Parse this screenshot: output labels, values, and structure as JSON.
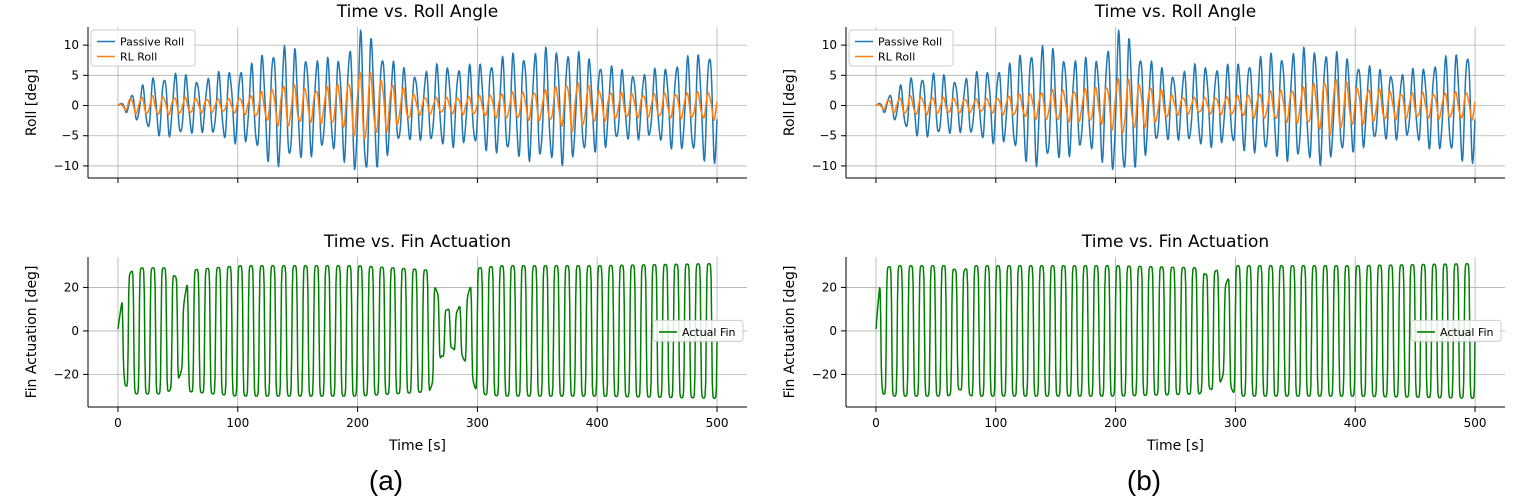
{
  "panels": [
    {
      "label": "(a)"
    },
    {
      "label": "(b)"
    }
  ],
  "colors": {
    "passive": "#1f77b4",
    "rl": "#ff7f0e",
    "fin": "#008000",
    "grid": "#b0b0b0"
  },
  "chart_data": [
    {
      "id": "a-roll",
      "type": "line",
      "title": "Time vs. Roll Angle",
      "xlabel": "",
      "ylabel": "Roll [deg]",
      "xlim": [
        -25,
        525
      ],
      "ylim": [
        -12,
        13
      ],
      "yticks": [
        -10,
        -5,
        0,
        5,
        10
      ],
      "xticks": [
        0,
        100,
        200,
        300,
        400,
        500
      ],
      "show_xtick_labels": false,
      "grid": true,
      "legend": "top-left",
      "series": [
        {
          "name": "Passive Roll",
          "color_key": "passive",
          "period": 9.1,
          "phase": 0,
          "env": {
            "x": [
              0,
              10,
              30,
              50,
              70,
              90,
              110,
              120,
              135,
              150,
              170,
              185,
              200,
              205,
              210,
              220,
              235,
              250,
              270,
              290,
              310,
              330,
              350,
              370,
              400,
              420,
              440,
              470,
              490,
              500
            ],
            "y": [
              0,
              1.5,
              4.5,
              5,
              4,
              5.5,
              6,
              8,
              9.5,
              8.5,
              7,
              7.5,
              11,
              11.5,
              11,
              8.5,
              6,
              5,
              6.5,
              6,
              7,
              8,
              8.5,
              9,
              7,
              5.5,
              5,
              7,
              8.5,
              9
            ]
          }
        },
        {
          "name": "RL Roll",
          "color_key": "rl",
          "period": 9.1,
          "phase": 0.55,
          "env": {
            "x": [
              0,
              10,
              30,
              60,
              90,
              110,
              125,
              140,
              160,
              190,
              200,
              205,
              210,
              230,
              250,
              270,
              300,
              320,
              340,
              360,
              380,
              400,
              420,
              440,
              470,
              500
            ],
            "y": [
              0,
              1.2,
              1.5,
              1.2,
              1.0,
              1.5,
              2.5,
              3.5,
              2.5,
              3.5,
              5,
              6,
              5,
              3.5,
              1.5,
              1.2,
              1.5,
              2,
              2.2,
              2.5,
              4,
              2.5,
              2,
              1.8,
              2,
              2.2
            ]
          }
        }
      ]
    },
    {
      "id": "a-fin",
      "type": "line",
      "title": "Time vs. Fin Actuation",
      "xlabel": "Time [s]",
      "ylabel": "Fin Actuation [deg]",
      "xlim": [
        -25,
        525
      ],
      "ylim": [
        -35,
        34
      ],
      "yticks": [
        -20,
        0,
        20
      ],
      "xticks": [
        0,
        100,
        200,
        300,
        400,
        500
      ],
      "show_xtick_labels": true,
      "grid": true,
      "legend": "center-right",
      "series": [
        {
          "name": "Actual Fin",
          "color_key": "fin",
          "period": 9.1,
          "phase": 0.3,
          "env": {
            "x": [
              0,
              3,
              6,
              15,
              40,
              50,
              55,
              60,
              100,
              200,
              260,
              270,
              280,
              290,
              300,
              320,
              400,
              500
            ],
            "y": [
              3,
              12,
              25,
              29,
              29,
              24,
              14,
              28,
              30,
              30,
              28,
              12,
              8,
              14,
              29,
              30,
              30,
              31
            ]
          }
        }
      ]
    },
    {
      "id": "b-roll",
      "type": "line",
      "title": "Time vs. Roll Angle",
      "xlabel": "",
      "ylabel": "Roll [deg]",
      "xlim": [
        -25,
        525
      ],
      "ylim": [
        -12,
        13
      ],
      "yticks": [
        -10,
        -5,
        0,
        5,
        10
      ],
      "xticks": [
        0,
        100,
        200,
        300,
        400,
        500
      ],
      "show_xtick_labels": false,
      "grid": true,
      "legend": "top-left",
      "series": [
        {
          "name": "Passive Roll",
          "color_key": "passive",
          "period": 9.1,
          "phase": 0,
          "env": {
            "x": [
              0,
              10,
              30,
              50,
              70,
              90,
              110,
              120,
              135,
              150,
              170,
              185,
              200,
              205,
              210,
              220,
              235,
              250,
              270,
              290,
              310,
              330,
              350,
              370,
              400,
              420,
              440,
              470,
              490,
              500
            ],
            "y": [
              0,
              1.5,
              4.5,
              5,
              4,
              5.5,
              6,
              8,
              9.5,
              8.5,
              7,
              7.5,
              11,
              11.5,
              11,
              8.5,
              6,
              5,
              6.5,
              6,
              7,
              8,
              8.5,
              9,
              7,
              5.5,
              5,
              7,
              8.5,
              9
            ]
          }
        },
        {
          "name": "RL Roll",
          "color_key": "rl",
          "period": 9.1,
          "phase": 0.55,
          "env": {
            "x": [
              0,
              10,
              30,
              60,
              90,
              110,
              130,
              150,
              170,
              190,
              200,
              205,
              210,
              230,
              250,
              270,
              300,
              320,
              340,
              360,
              380,
              400,
              420,
              440,
              470,
              500
            ],
            "y": [
              0,
              1.0,
              1.5,
              1.2,
              1.0,
              1.5,
              2.0,
              2.5,
              2.5,
              3.0,
              4.0,
              5.0,
              4.0,
              3.0,
              1.5,
              1.2,
              1.5,
              2,
              2.5,
              3,
              4.5,
              3,
              2.5,
              2,
              2,
              2.2
            ]
          }
        }
      ]
    },
    {
      "id": "b-fin",
      "type": "line",
      "title": "Time vs. Fin Actuation",
      "xlabel": "Time [s]",
      "ylabel": "Fin Actuation [deg]",
      "xlim": [
        -25,
        525
      ],
      "ylim": [
        -35,
        34
      ],
      "yticks": [
        -20,
        0,
        20
      ],
      "xticks": [
        0,
        100,
        200,
        300,
        400,
        500
      ],
      "show_xtick_labels": true,
      "grid": true,
      "legend": "center-right",
      "series": [
        {
          "name": "Actual Fin",
          "color_key": "fin",
          "period": 9.1,
          "phase": 0.3,
          "env": {
            "x": [
              0,
              3,
              6,
              15,
              60,
              70,
              80,
              100,
              200,
              270,
              275,
              285,
              290,
              300,
              400,
              500
            ],
            "y": [
              3,
              20,
              29,
              30,
              30,
              27,
              30,
              30,
              30,
              29,
              26,
              28,
              20,
              30,
              30,
              31
            ]
          }
        }
      ]
    }
  ]
}
